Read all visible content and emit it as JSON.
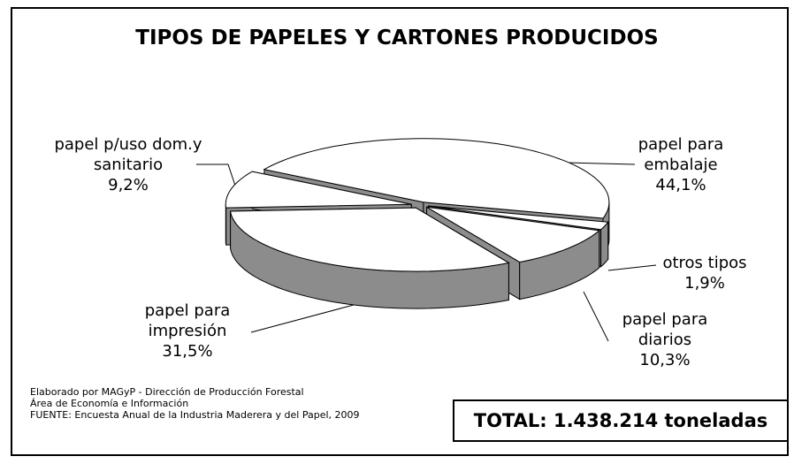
{
  "chart_data": {
    "type": "pie",
    "title": "TIPOS DE PAPELES Y CARTONES PRODUCIDOS",
    "categories": [
      "papel para embalaje",
      "otros tipos",
      "papel para diarios",
      "papel para impresión",
      "papel p/uso dom.y sanitario"
    ],
    "values": [
      44.1,
      1.9,
      10.3,
      31.5,
      9.2
    ],
    "value_labels": [
      "44,1%",
      "1,9%",
      "10,3%",
      "31,5%",
      "9,2%"
    ],
    "color": "#ffffff",
    "side_color": "#8c8c8c"
  },
  "notes": [
    "Elaborado por  MAGyP - Dirección de Producción Forestal",
    "Área de Economía e Información",
    "FUENTE: Encuesta Anual de la Industria Maderera y del Papel, 2009"
  ],
  "total": "TOTAL: 1.438.214 toneladas"
}
